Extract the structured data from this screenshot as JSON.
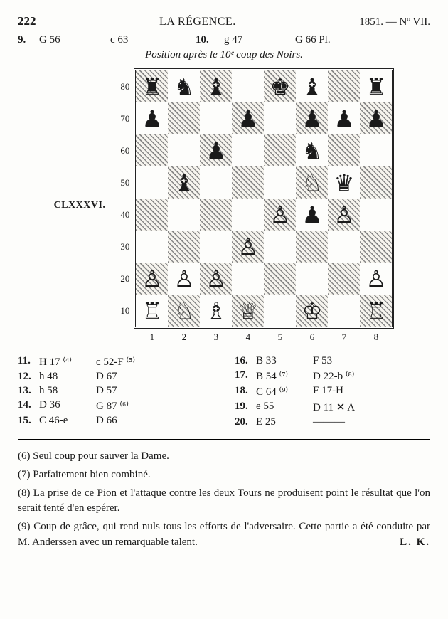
{
  "header": {
    "page": "222",
    "title": "LA RÉGENCE.",
    "issue": "1851. — Nº VII."
  },
  "preMoves": {
    "n1": "9.",
    "w1": "G 56",
    "b1": "c 63",
    "n2": "10.",
    "w2": "g 47",
    "b2": "G 66 Pl."
  },
  "caption": "Position après le 10ᵉ coup des Noirs.",
  "diagram_label": "CLXXXVI.",
  "board": {
    "ranks": [
      "80",
      "70",
      "60",
      "50",
      "40",
      "30",
      "20",
      "10"
    ],
    "files": [
      "1",
      "2",
      "3",
      "4",
      "5",
      "6",
      "7",
      "8"
    ],
    "rows": [
      [
        "♜",
        "♞",
        "♝",
        "",
        "♚",
        "♝",
        "",
        "♜"
      ],
      [
        "♟",
        "",
        "",
        "♟",
        "",
        "♟",
        "♟",
        "♟"
      ],
      [
        "",
        "",
        "♟",
        "",
        "",
        "♞",
        "",
        ""
      ],
      [
        "",
        "♝",
        "",
        "",
        "",
        "♘",
        "♛",
        ""
      ],
      [
        "",
        "",
        "",
        "",
        "♙",
        "♟",
        "♙",
        ""
      ],
      [
        "",
        "",
        "",
        "♙",
        "",
        "",
        "",
        ""
      ],
      [
        "♙",
        "♙",
        "♙",
        "",
        "",
        "",
        "",
        "♙"
      ],
      [
        "♖",
        "♘",
        "♗",
        "♕",
        "",
        "♔",
        "",
        "♖"
      ]
    ],
    "dark_first": true
  },
  "moves_left": [
    {
      "n": "11.",
      "w": "H 17 ⁽⁴⁾",
      "b": "c 52-F ⁽⁵⁾"
    },
    {
      "n": "12.",
      "w": "h 48",
      "b": "D 67"
    },
    {
      "n": "13.",
      "w": "h 58",
      "b": "D 57"
    },
    {
      "n": "14.",
      "w": "D 36",
      "b": "G 87 ⁽⁶⁾"
    },
    {
      "n": "15.",
      "w": "C 46-e",
      "b": "D 66"
    }
  ],
  "moves_right": [
    {
      "n": "16.",
      "w": "B 33",
      "b": "F 53"
    },
    {
      "n": "17.",
      "w": "B 54 ⁽⁷⁾",
      "b": "D 22-b ⁽⁸⁾"
    },
    {
      "n": "18.",
      "w": "C 64 ⁽⁹⁾",
      "b": "F 17-H"
    },
    {
      "n": "19.",
      "w": "e 55",
      "b": "D 11 ✕ A"
    },
    {
      "n": "20.",
      "w": "E 25",
      "b": "———"
    }
  ],
  "notes": [
    "(6) Seul coup pour sauver la Dame.",
    "(7) Parfaitement bien combiné.",
    "(8) La prise de ce Pion et l'attaque contre les deux Tours ne produisent point le résultat que l'on serait tenté d'en espérer.",
    "(9) Coup de grâce, qui rend nuls tous les efforts de l'adversaire. Cette partie a été conduite par M. Anderssen avec un remarquable talent."
  ],
  "signature": "L. K."
}
